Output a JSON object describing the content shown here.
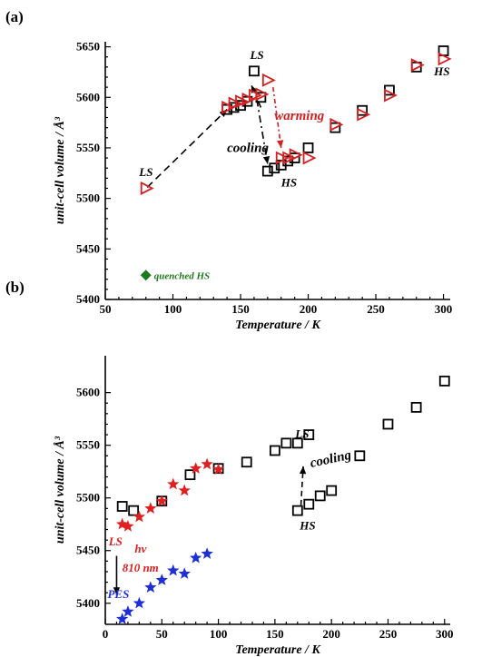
{
  "chart_data": [
    {
      "panel_label": "(a)",
      "type": "scatter",
      "xlabel": "Temperature / K",
      "ylabel": "unit-cell volume / Å³",
      "xlim": [
        50,
        305
      ],
      "ylim": [
        5400,
        5655
      ],
      "xticks": [
        50,
        100,
        150,
        200,
        250,
        300
      ],
      "yticks": [
        5400,
        5450,
        5500,
        5550,
        5600,
        5650
      ],
      "series": [
        {
          "marker": "square",
          "color": "#000000",
          "points": [
            [
              140,
              5588
            ],
            [
              145,
              5590
            ],
            [
              150,
              5592
            ],
            [
              155,
              5596
            ],
            [
              160,
              5626
            ],
            [
              165,
              5600
            ],
            [
              170,
              5527
            ],
            [
              175,
              5530
            ],
            [
              180,
              5533
            ],
            [
              185,
              5537
            ],
            [
              190,
              5540
            ],
            [
              200,
              5550
            ],
            [
              220,
              5570
            ],
            [
              240,
              5587
            ],
            [
              260,
              5607
            ],
            [
              280,
              5630
            ],
            [
              300,
              5646
            ]
          ]
        },
        {
          "marker": "triangle-right",
          "color": "#d42020",
          "points": [
            [
              80,
              5510
            ],
            [
              140,
              5590
            ],
            [
              145,
              5594
            ],
            [
              150,
              5596
            ],
            [
              155,
              5598
            ],
            [
              160,
              5602
            ],
            [
              165,
              5603
            ],
            [
              170,
              5617
            ],
            [
              180,
              5540
            ],
            [
              185,
              5540
            ],
            [
              190,
              5543
            ],
            [
              200,
              5540
            ],
            [
              220,
              5573
            ],
            [
              240,
              5583
            ],
            [
              260,
              5602
            ],
            [
              280,
              5632
            ],
            [
              300,
              5638
            ]
          ]
        },
        {
          "marker": "diamond",
          "color": "#1e7a1e",
          "name": "quenched HS",
          "points": [
            [
              80,
              5424
            ]
          ]
        }
      ],
      "annotations": [
        {
          "text": "LS",
          "x": 75,
          "y": 5522,
          "color": "#000000",
          "size": 13
        },
        {
          "text": "LS",
          "x": 157,
          "y": 5638,
          "color": "#000000",
          "size": 13
        },
        {
          "text": "warming",
          "x": 175,
          "y": 5578,
          "color": "#d42020",
          "size": 15
        },
        {
          "text": "cooling",
          "x": 140,
          "y": 5546,
          "color": "#000000",
          "size": 15
        },
        {
          "text": "HS",
          "x": 180,
          "y": 5512,
          "color": "#000000",
          "size": 13
        },
        {
          "text": "HS",
          "x": 293,
          "y": 5622,
          "color": "#000000",
          "size": 13
        }
      ],
      "arrows": [
        {
          "from": [
            81,
            5511
          ],
          "to": [
            140,
            5588
          ],
          "color": "#000000",
          "dash": "8,5"
        },
        {
          "from": [
            165,
            5590
          ],
          "to": [
            158,
            5612
          ],
          "color": "#000000",
          "dash": "8,4,2,4"
        },
        {
          "from": [
            162,
            5598
          ],
          "to": [
            170,
            5534
          ],
          "color": "#000000",
          "dash": "8,4,2,4"
        },
        {
          "from": [
            174,
            5610
          ],
          "to": [
            180,
            5550
          ],
          "color": "#d42020",
          "dash": "5,3,2,3"
        }
      ]
    },
    {
      "panel_label": "(b)",
      "type": "scatter",
      "xlabel": "Temperature / K",
      "ylabel": "unit-cell volume / Å³",
      "xlim": [
        0,
        305
      ],
      "ylim": [
        5380,
        5635
      ],
      "xticks": [
        0,
        50,
        100,
        150,
        200,
        250,
        300
      ],
      "yticks": [
        5400,
        5450,
        5500,
        5550,
        5600
      ],
      "series": [
        {
          "marker": "square",
          "color": "#000000",
          "points": [
            [
              15,
              5492
            ],
            [
              25,
              5488
            ],
            [
              50,
              5497
            ],
            [
              75,
              5522
            ],
            [
              100,
              5528
            ],
            [
              125,
              5534
            ],
            [
              150,
              5545
            ],
            [
              160,
              5552
            ],
            [
              170,
              5552
            ],
            [
              180,
              5560
            ],
            [
              170,
              5488
            ],
            [
              180,
              5494
            ],
            [
              190,
              5502
            ],
            [
              200,
              5507
            ],
            [
              225,
              5540
            ],
            [
              250,
              5570
            ],
            [
              275,
              5586
            ],
            [
              300,
              5611
            ]
          ]
        },
        {
          "marker": "star",
          "color": "#e02020",
          "points": [
            [
              15,
              5475
            ],
            [
              20,
              5473
            ],
            [
              30,
              5482
            ],
            [
              40,
              5490
            ],
            [
              50,
              5497
            ],
            [
              60,
              5513
            ],
            [
              70,
              5507
            ],
            [
              80,
              5528
            ],
            [
              90,
              5532
            ],
            [
              100,
              5527
            ]
          ]
        },
        {
          "marker": "star",
          "color": "#1e2fd6",
          "points": [
            [
              15,
              5385
            ],
            [
              20,
              5392
            ],
            [
              30,
              5400
            ],
            [
              40,
              5415
            ],
            [
              50,
              5422
            ],
            [
              60,
              5431
            ],
            [
              70,
              5428
            ],
            [
              80,
              5443
            ],
            [
              90,
              5447
            ]
          ]
        }
      ],
      "annotations": [
        {
          "text": "LS",
          "x": 3,
          "y": 5455,
          "color": "#e02020",
          "size": 13
        },
        {
          "text": "hν",
          "x": 26,
          "y": 5448,
          "color": "#e02020",
          "size": 13
        },
        {
          "text": "810 nm",
          "x": 15,
          "y": 5430,
          "color": "#e02020",
          "size": 13
        },
        {
          "text": "PES",
          "x": 2,
          "y": 5405,
          "color": "#1e2fd6",
          "size": 13
        },
        {
          "text": "LS",
          "x": 168,
          "y": 5557,
          "color": "#000000",
          "size": 13
        },
        {
          "text": "cooling",
          "x": 182,
          "y": 5529,
          "color": "#000000",
          "size": 15,
          "rotate": -12
        },
        {
          "text": "HS",
          "x": 172,
          "y": 5470,
          "color": "#000000",
          "size": 13
        }
      ],
      "arrows": [
        {
          "from": [
            10,
            5445
          ],
          "to": [
            10,
            5408
          ],
          "color": "#000000",
          "dash": ""
        },
        {
          "from": [
            173,
            5493
          ],
          "to": [
            175,
            5530
          ],
          "color": "#000000",
          "dash": "6,4"
        }
      ]
    }
  ]
}
